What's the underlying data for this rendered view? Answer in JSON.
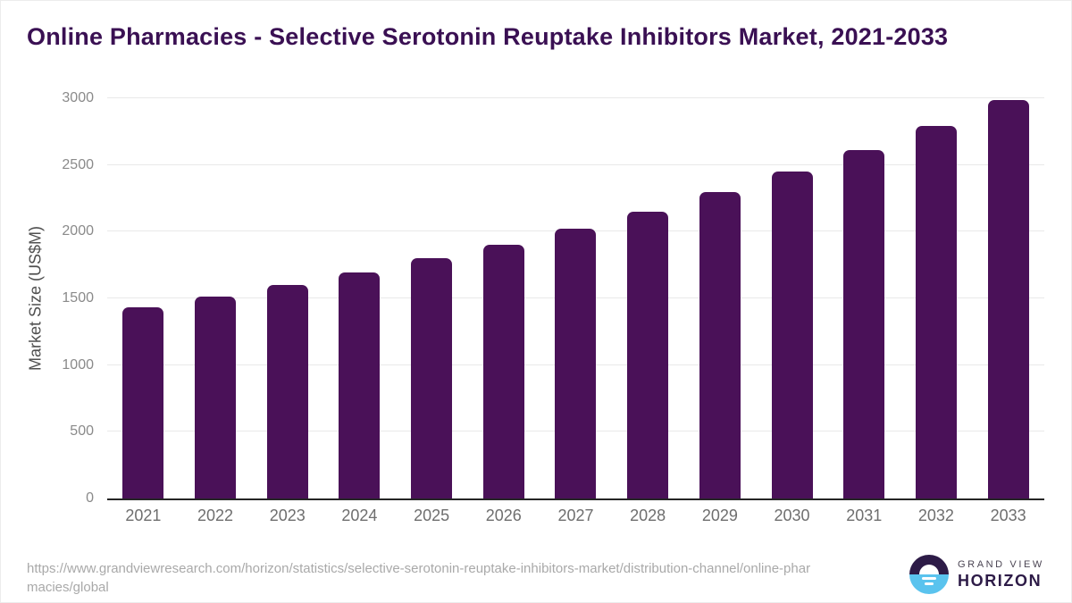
{
  "chart_data": {
    "type": "bar",
    "title": "Online Pharmacies - Selective Serotonin Reuptake Inhibitors Market, 2021-2033",
    "categories": [
      "2021",
      "2022",
      "2023",
      "2024",
      "2025",
      "2026",
      "2027",
      "2028",
      "2029",
      "2030",
      "2031",
      "2032",
      "2033"
    ],
    "values": [
      1435,
      1515,
      1600,
      1695,
      1800,
      1905,
      2025,
      2150,
      2295,
      2450,
      2610,
      2790,
      2990
    ],
    "xlabel": "",
    "ylabel": "Market Size (US$M)",
    "ylim": [
      0,
      3000
    ],
    "yticks": [
      0,
      500,
      1000,
      1500,
      2000,
      2500,
      3000
    ],
    "grid": true,
    "legend": "none",
    "bar_color": "#4a1158"
  },
  "colors": {
    "bar": "#4a1158",
    "title_text": "#3a1053",
    "axis_line": "#262626",
    "gridline": "#e9e9e9",
    "y_tick_text": "#8a8a8a",
    "x_tick_text": "#6e6e6e",
    "source_text": "#a9a9a9",
    "logo_dark_purple": "#2d1b47",
    "logo_light_blue": "#5ac3ee"
  },
  "footer": {
    "source_url": "https://www.grandviewresearch.com/horizon/statistics/selective-serotonin-reuptake-inhibitors-market/distribution-channel/online-pharmacies/global",
    "logo": {
      "line1": "GRAND VIEW",
      "line2": "HORIZON"
    }
  }
}
